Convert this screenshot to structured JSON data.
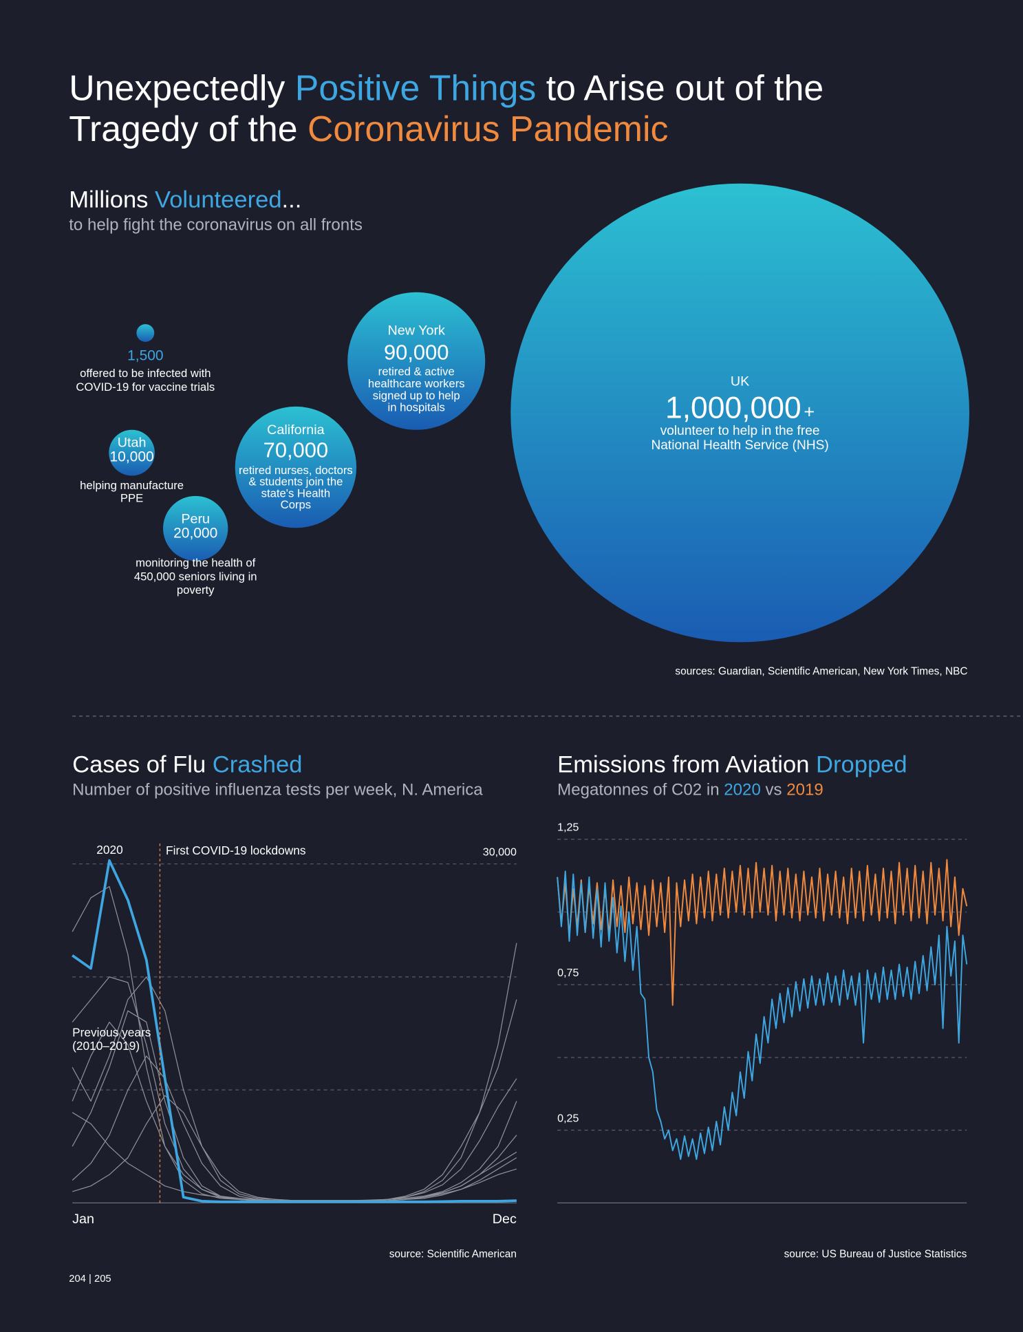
{
  "title_lines": [
    [
      {
        "text": "Unexpectedly ",
        "color": "#ffffff"
      },
      {
        "text": "Positive Things",
        "color": "#3ea6e0"
      },
      {
        "text": " to Arise out of the",
        "color": "#ffffff"
      }
    ],
    [
      {
        "text": "Tragedy of the ",
        "color": "#ffffff"
      },
      {
        "text": "Coronavirus Pandemic",
        "color": "#f08a3e"
      }
    ]
  ],
  "page_number": "204 | 205",
  "chart_data": [
    {
      "type": "bubble",
      "title": [
        {
          "text": "Millions ",
          "color": "#ffffff"
        },
        {
          "text": "Volunteered",
          "color": "#3ea6e0"
        },
        {
          "text": "...",
          "color": "#ffffff"
        }
      ],
      "subtitle": "to help fight the coronavirus on all fronts",
      "categories": [
        null,
        "Utah",
        "Peru",
        "California",
        "New York",
        "UK"
      ],
      "values": [
        1500,
        10000,
        20000,
        70000,
        90000,
        1000000
      ],
      "value_labels": [
        "1,500",
        "10,000",
        "20,000",
        "70,000",
        "90,000",
        "1,000,000"
      ],
      "value_suffixes": [
        null,
        null,
        null,
        null,
        null,
        "+"
      ],
      "descriptions": [
        [
          "offered to be infected with",
          "COVID-19 for vaccine trials"
        ],
        [
          "helping manufacture",
          "PPE"
        ],
        [
          "monitoring the health of",
          "450,000 seniors living in",
          "poverty"
        ],
        [
          "retired nurses, doctors",
          "& students join the",
          "state's Health",
          "Corps"
        ],
        [
          "retired & active",
          "healthcare workers",
          "signed up to help",
          "in hospitals"
        ],
        [
          "volunteer to help in the free",
          "National Health Service (NHS)"
        ]
      ],
      "source": "sources: Guardian, Scientific American, New York Times, NBC"
    },
    {
      "type": "line",
      "title": [
        {
          "text": "Cases of Flu ",
          "color": "#ffffff"
        },
        {
          "text": "Crashed",
          "color": "#3ea6e0"
        }
      ],
      "subtitle": "Number of positive influenza tests per week, N. America",
      "categories": [
        "Jan",
        null,
        null,
        null,
        null,
        null,
        null,
        null,
        null,
        null,
        null,
        null,
        null,
        null,
        null,
        null,
        null,
        null,
        null,
        null,
        null,
        null,
        null,
        null,
        "Dec"
      ],
      "ylim": [
        0,
        30000
      ],
      "yticks": [
        {
          "value": 30000,
          "label": "30,000"
        }
      ],
      "grid_values": [
        10000,
        20000
      ],
      "series": [
        {
          "name": "2020",
          "color": "#3ea6e0",
          "values": [
            21900,
            20750,
            30300,
            26800,
            21500,
            11000,
            500,
            150,
            100,
            100,
            100,
            100,
            100,
            100,
            100,
            100,
            100,
            100,
            100,
            100,
            120,
            150,
            150,
            150,
            200
          ]
        },
        {
          "color": "#8e909a",
          "values": [
            24000,
            27000,
            28000,
            22000,
            12000,
            5000,
            2000,
            800,
            400,
            300,
            250,
            200,
            200,
            200,
            200,
            200,
            250,
            300,
            400,
            600,
            900,
            1500,
            2500,
            3500,
            4500
          ]
        },
        {
          "color": "#8e909a",
          "values": [
            16000,
            18000,
            20000,
            19500,
            14000,
            7000,
            3000,
            1200,
            500,
            300,
            200,
            200,
            200,
            200,
            200,
            200,
            200,
            300,
            500,
            1000,
            2000,
            4000,
            8000,
            14000,
            23000
          ]
        },
        {
          "color": "#8e909a",
          "values": [
            9000,
            13000,
            16000,
            14000,
            9000,
            5000,
            2500,
            1200,
            600,
            400,
            300,
            200,
            200,
            200,
            200,
            200,
            200,
            300,
            600,
            1200,
            2500,
            5000,
            8000,
            12000,
            18000
          ]
        },
        {
          "color": "#8e909a",
          "values": [
            5000,
            8000,
            12000,
            17000,
            16000,
            9000,
            4000,
            1500,
            600,
            300,
            200,
            200,
            200,
            200,
            200,
            200,
            200,
            300,
            500,
            900,
            1600,
            3000,
            5500,
            8500,
            11000
          ]
        },
        {
          "color": "#8e909a",
          "values": [
            2000,
            3500,
            6000,
            10000,
            13000,
            11000,
            7000,
            3500,
            1500,
            600,
            300,
            200,
            200,
            200,
            200,
            200,
            200,
            200,
            300,
            500,
            900,
            1500,
            2500,
            4000,
            6000
          ]
        },
        {
          "color": "#8e909a",
          "values": [
            1000,
            1500,
            2500,
            4000,
            7000,
            9500,
            8000,
            5000,
            2500,
            1000,
            500,
            300,
            200,
            200,
            200,
            200,
            200,
            200,
            300,
            400,
            700,
            1200,
            2000,
            3000,
            4000
          ]
        },
        {
          "color": "#8e909a",
          "values": [
            8000,
            7000,
            5000,
            3500,
            2500,
            1500,
            1000,
            700,
            500,
            300,
            200,
            200,
            200,
            200,
            200,
            200,
            200,
            200,
            300,
            500,
            800,
            1200,
            1800,
            2500,
            3000
          ]
        },
        {
          "color": "#8e909a",
          "values": [
            12000,
            9000,
            13000,
            18000,
            20000,
            17000,
            10000,
            5000,
            2000,
            800,
            400,
            300,
            200,
            200,
            200,
            200,
            200,
            300,
            400,
            600,
            1000,
            1800,
            3000,
            5000,
            9000
          ]
        }
      ],
      "annotations": [
        {
          "text": "First COVID-19 lockdowns",
          "x": 4.73,
          "color": "#f08a3e"
        },
        {
          "text": [
            "Previous years",
            "(2010–2019)"
          ]
        }
      ],
      "source": "source: Scientific American"
    },
    {
      "type": "line",
      "title": [
        {
          "text": "Emissions from Aviation ",
          "color": "#ffffff"
        },
        {
          "text": "Dropped",
          "color": "#3ea6e0"
        }
      ],
      "subtitle": [
        "Megatonnes of C02 in ",
        " vs "
      ],
      "ylim": [
        0,
        1.25
      ],
      "yticks": [
        {
          "value": 0.25,
          "label": "0,25"
        },
        {
          "value": 0.75,
          "label": "0,75"
        },
        {
          "value": 1.25,
          "label": "1,25"
        }
      ],
      "grid_values": [
        0.5,
        1
      ],
      "series": [
        {
          "name": "2020",
          "color": "#3ea6e0",
          "values": [
            1.12,
            0.95,
            1.14,
            0.9,
            1.13,
            0.92,
            1.1,
            0.93,
            1.12,
            0.91,
            1.08,
            0.88,
            1.1,
            0.9,
            1.05,
            0.86,
            1.02,
            0.83,
            1.0,
            0.8,
            0.95,
            0.72,
            0.7,
            0.5,
            0.45,
            0.32,
            0.28,
            0.22,
            0.25,
            0.18,
            0.22,
            0.15,
            0.23,
            0.16,
            0.22,
            0.15,
            0.24,
            0.17,
            0.26,
            0.18,
            0.28,
            0.2,
            0.33,
            0.25,
            0.38,
            0.3,
            0.45,
            0.36,
            0.52,
            0.42,
            0.58,
            0.48,
            0.64,
            0.55,
            0.7,
            0.6,
            0.72,
            0.62,
            0.74,
            0.64,
            0.76,
            0.66,
            0.77,
            0.67,
            0.78,
            0.68,
            0.77,
            0.68,
            0.79,
            0.69,
            0.78,
            0.68,
            0.8,
            0.7,
            0.78,
            0.68,
            0.79,
            0.55,
            0.8,
            0.7,
            0.79,
            0.69,
            0.81,
            0.7,
            0.8,
            0.7,
            0.82,
            0.71,
            0.81,
            0.7,
            0.83,
            0.72,
            0.85,
            0.73,
            0.88,
            0.75,
            0.92,
            0.6,
            0.95,
            0.78,
            0.9,
            0.55,
            0.92,
            0.82
          ]
        },
        {
          "name": "2019",
          "color": "#f08a3e",
          "values": [
            1.12,
            0.96,
            1.1,
            0.92,
            1.08,
            0.95,
            1.11,
            0.93,
            1.09,
            0.96,
            1.1,
            0.94,
            1.08,
            0.92,
            1.11,
            0.95,
            1.09,
            0.93,
            1.12,
            0.96,
            1.1,
            0.94,
            1.09,
            0.92,
            1.11,
            0.95,
            1.1,
            0.93,
            1.12,
            0.68,
            1.1,
            0.95,
            1.11,
            0.97,
            1.13,
            0.96,
            1.12,
            0.98,
            1.14,
            0.97,
            1.13,
            0.99,
            1.15,
            0.98,
            1.14,
            1.0,
            1.16,
            0.99,
            1.15,
            0.98,
            1.17,
            1.0,
            1.15,
            0.99,
            1.16,
            0.97,
            1.14,
            0.99,
            1.15,
            0.98,
            1.13,
            0.97,
            1.14,
            0.99,
            1.12,
            0.98,
            1.15,
            0.97,
            1.13,
            0.99,
            1.14,
            0.98,
            1.12,
            0.96,
            1.15,
            0.98,
            1.14,
            0.97,
            1.16,
            0.99,
            1.13,
            0.97,
            1.15,
            0.98,
            1.14,
            0.96,
            1.17,
            0.99,
            1.15,
            0.97,
            1.16,
            0.98,
            1.14,
            0.96,
            1.17,
            0.99,
            1.15,
            0.97,
            1.18,
            0.95,
            1.12,
            0.92,
            1.08,
            1.02
          ]
        }
      ],
      "source": "source: US Bureau of Justice Statistics"
    }
  ]
}
